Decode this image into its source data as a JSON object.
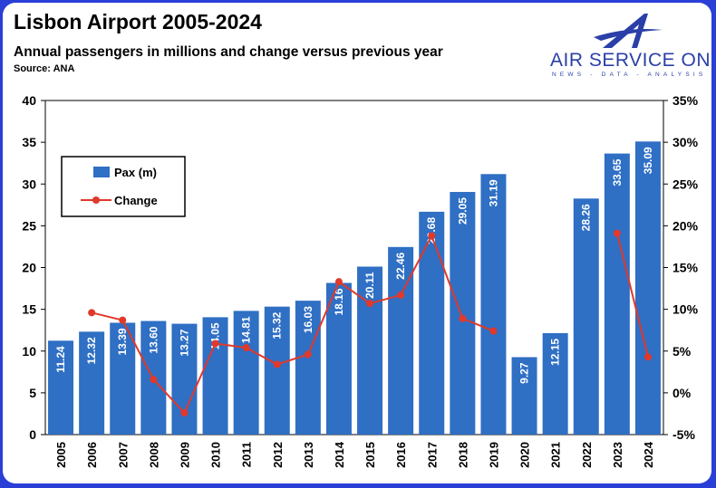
{
  "header": {
    "title": "Lisbon Airport 2005-2024",
    "subtitle": "Annual passengers in millions and change versus previous year",
    "source": "Source: ANA"
  },
  "logo": {
    "name": "AIR SERVICE ONE",
    "tagline": "NEWS - DATA - ANALYSIS",
    "color": "#2a3fa8"
  },
  "chart_data": {
    "type": "bar",
    "categories": [
      "2005",
      "2006",
      "2007",
      "2008",
      "2009",
      "2010",
      "2011",
      "2012",
      "2013",
      "2014",
      "2015",
      "2016",
      "2017",
      "2018",
      "2019",
      "2020",
      "2021",
      "2022",
      "2023",
      "2024"
    ],
    "series": [
      {
        "name": "Pax (m)",
        "type": "bar",
        "axis": "left",
        "color": "#2f6fc4",
        "values": [
          11.24,
          12.32,
          13.39,
          13.6,
          13.27,
          14.05,
          14.81,
          15.32,
          16.03,
          18.16,
          20.11,
          22.46,
          26.68,
          29.05,
          31.19,
          9.27,
          12.15,
          28.26,
          33.65,
          35.09
        ],
        "labels": [
          "11.24",
          "12.32",
          "13.39",
          "13.60",
          "13.27",
          "14.05",
          "14.81",
          "15.32",
          "16.03",
          "18.16",
          "20.11",
          "22.46",
          "26.68",
          "29.05",
          "31.19",
          "9.27",
          "12.15",
          "28.26",
          "33.65",
          "35.09"
        ]
      },
      {
        "name": "Change",
        "type": "line",
        "axis": "right",
        "color": "#e0392b",
        "values": [
          null,
          9.6,
          8.7,
          1.6,
          -2.4,
          5.9,
          5.4,
          3.4,
          4.6,
          13.3,
          10.7,
          11.7,
          18.8,
          8.9,
          7.4,
          null,
          null,
          null,
          19.1,
          4.3
        ]
      }
    ],
    "left_axis": {
      "min": 0,
      "max": 40,
      "ticks": [
        "0",
        "5",
        "10",
        "15",
        "20",
        "25",
        "30",
        "35",
        "40"
      ]
    },
    "right_axis": {
      "min": -5,
      "max": 35,
      "ticks": [
        "-5%",
        "0%",
        "5%",
        "10%",
        "15%",
        "20%",
        "25%",
        "30%",
        "35%"
      ]
    },
    "grid": false,
    "legend": {
      "position": "upper-left",
      "entries": [
        "Pax (m)",
        "Change"
      ]
    }
  }
}
